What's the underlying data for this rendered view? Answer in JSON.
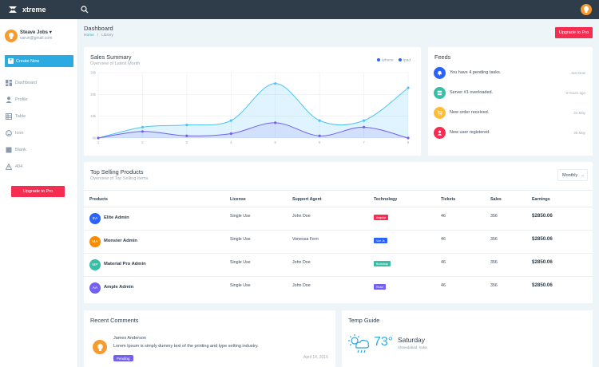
{
  "app": {
    "name": "xtreme"
  },
  "user": {
    "name": "Steave Jobs",
    "email": "varun@gmail.com"
  },
  "sidebar": {
    "create_label": "Create New",
    "items": [
      {
        "label": "Dashboard",
        "icon": "dashboard-icon"
      },
      {
        "label": "Profile",
        "icon": "profile-icon"
      },
      {
        "label": "Table",
        "icon": "table-icon"
      },
      {
        "label": "Icon",
        "icon": "face-icon"
      },
      {
        "label": "Blank",
        "icon": "blank-icon"
      },
      {
        "label": "404",
        "icon": "alert-icon"
      }
    ],
    "upgrade_label": "Upgrade to Pro"
  },
  "header": {
    "title": "Dashboard",
    "breadcrumb": [
      "Home",
      "Library"
    ],
    "upgrade_label": "Upgrade to Pro"
  },
  "sales": {
    "title": "Sales Summary",
    "subtitle": "Overview of Latest Month",
    "legend": [
      "Iphone",
      "Ipad"
    ]
  },
  "chart_data": {
    "type": "area",
    "x": [
      1,
      2,
      3,
      4,
      5,
      6,
      7,
      8
    ],
    "y_ticks": [
      "0k",
      "10k",
      "20k",
      "30k"
    ],
    "ylim": [
      0,
      30
    ],
    "series": [
      {
        "name": "Iphone",
        "color": "#4fc3f7",
        "values": [
          0,
          5,
          6,
          8,
          25,
          8,
          8,
          23
        ]
      },
      {
        "name": "Ipad",
        "color": "#7460ee",
        "values": [
          0,
          3,
          1,
          2,
          7,
          1,
          5,
          0
        ]
      }
    ],
    "grid": true,
    "legend_position": "top-right"
  },
  "feeds": {
    "title": "Feeds",
    "items": [
      {
        "text": "You have 4 pending tasks.",
        "time": "Just Now",
        "color": "#2962ff",
        "icon": "bell-icon"
      },
      {
        "text": "Server #1 overloaded.",
        "time": "2 Hours ago",
        "color": "#36bea6",
        "icon": "server-icon"
      },
      {
        "text": "New order received.",
        "time": "31 May",
        "color": "#ffbc34",
        "icon": "cart-icon"
      },
      {
        "text": "New user registered.",
        "time": "30 May",
        "color": "#f62d51",
        "icon": "user-icon"
      }
    ]
  },
  "top_selling": {
    "title": "Top Selling Products",
    "subtitle": "Overview of Top Selling Items",
    "filter": "Monthly",
    "columns": [
      "Products",
      "License",
      "Support Agent",
      "Technology",
      "Tickets",
      "Sales",
      "Earnings"
    ],
    "rows": [
      {
        "initials": "EA",
        "name": "Elite Admin",
        "license": "Single Use",
        "agent": "John Doe",
        "tech": "Angular",
        "tech_color": "#f62d51",
        "av_color": "#2962ff",
        "tickets": "46",
        "sales": "356",
        "earnings": "$2850.06"
      },
      {
        "initials": "MA",
        "name": "Monster Admin",
        "license": "Single Use",
        "agent": "Venessa Fern",
        "tech": "Vue Js",
        "tech_color": "#2962ff",
        "av_color": "#fb8c00",
        "tickets": "46",
        "sales": "356",
        "earnings": "$2850.06"
      },
      {
        "initials": "MP",
        "name": "Material Pro Admin",
        "license": "Single Use",
        "agent": "John Doe",
        "tech": "Bootstrap",
        "tech_color": "#36bea6",
        "av_color": "#36bea6",
        "tickets": "46",
        "sales": "356",
        "earnings": "$2850.06"
      },
      {
        "initials": "AA",
        "name": "Ample Admin",
        "license": "Single Use",
        "agent": "John Doe",
        "tech": "React",
        "tech_color": "#7460ee",
        "av_color": "#7460ee",
        "tickets": "46",
        "sales": "356",
        "earnings": "$2850.06"
      }
    ]
  },
  "comments": {
    "title": "Recent Comments",
    "name": "James Anderson",
    "text": "Lorem Ipsum is simply dummy text of the printing and type setting industry.",
    "status": "Pending",
    "date": "April 14, 2016"
  },
  "temp": {
    "title": "Temp Guide",
    "degree": "73°",
    "day": "Saturday",
    "city": "Ahmedabad, India"
  }
}
